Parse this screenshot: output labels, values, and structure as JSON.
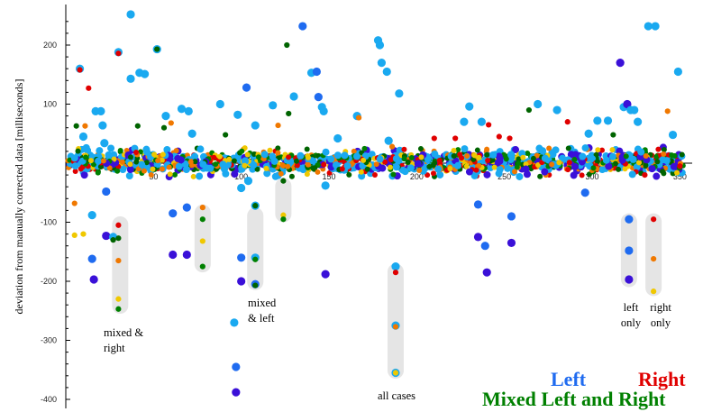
{
  "chart_data": {
    "type": "scatter",
    "ylabel": "deviation from manually corrected data [milliseconds]",
    "xlim": [
      0,
      360
    ],
    "ylim": [
      -405,
      270
    ],
    "x_ticks": [
      50,
      100,
      150,
      200,
      250,
      300,
      350
    ],
    "y_ticks": [
      200,
      100,
      -100,
      -200,
      -300,
      -400
    ],
    "colors": {
      "left": "#1f6bf0",
      "right": "#e00000",
      "mixed": "#008000",
      "light_blue": "#1aa9f0",
      "dark_blue": "#3a10d8",
      "orange": "#f07800",
      "yellow": "#f0c800",
      "dark_green": "#006400",
      "band": "#e0e0e0"
    },
    "legend": {
      "left": "Left",
      "right": "Right",
      "mixed": "Mixed Left and Right"
    },
    "annotations": [
      {
        "id": "mixed-right",
        "lines": [
          "mixed &",
          "right"
        ],
        "color": "#000000"
      },
      {
        "id": "mixed-left",
        "lines": [
          "mixed",
          "& left"
        ],
        "color": "#000000"
      },
      {
        "id": "all-cases",
        "lines": [
          "all cases"
        ],
        "color": "#000000"
      },
      {
        "id": "left-only",
        "lines": [
          "left",
          "only"
        ],
        "color": "#1f6bf0"
      },
      {
        "id": "right-only",
        "lines": [
          "right",
          "only"
        ],
        "color": "#e00000"
      }
    ],
    "highlight_bands": [
      {
        "x": 31,
        "y_from": -90,
        "y_to": -255
      },
      {
        "x": 78,
        "y_from": -70,
        "y_to": -185
      },
      {
        "x": 108,
        "y_from": -75,
        "y_to": -215
      },
      {
        "x": 124,
        "y_from": -25,
        "y_to": -100
      },
      {
        "x": 188,
        "y_from": -170,
        "y_to": -365
      },
      {
        "x": 321,
        "y_from": -85,
        "y_to": -210
      },
      {
        "x": 335,
        "y_from": -85,
        "y_to": -225
      }
    ],
    "outliers": [
      {
        "x": 8,
        "y": 160,
        "c": "light_blue",
        "big": true
      },
      {
        "x": 8,
        "y": 158,
        "c": "right",
        "big": false
      },
      {
        "x": 13,
        "y": 127,
        "c": "right",
        "big": false
      },
      {
        "x": 6,
        "y": 63,
        "c": "dark_green",
        "big": false
      },
      {
        "x": 10,
        "y": 45,
        "c": "light_blue",
        "big": true
      },
      {
        "x": 11,
        "y": 63,
        "c": "orange",
        "big": false
      },
      {
        "x": 17,
        "y": 88,
        "c": "light_blue",
        "big": true
      },
      {
        "x": 20,
        "y": 88,
        "c": "light_blue",
        "big": true
      },
      {
        "x": 21,
        "y": 64,
        "c": "light_blue",
        "big": true
      },
      {
        "x": 22,
        "y": 34,
        "c": "light_blue",
        "big": true
      },
      {
        "x": 30,
        "y": 188,
        "c": "light_blue",
        "big": true
      },
      {
        "x": 30,
        "y": 186,
        "c": "right",
        "big": false
      },
      {
        "x": 37,
        "y": 252,
        "c": "light_blue",
        "big": true
      },
      {
        "x": 37,
        "y": 143,
        "c": "light_blue",
        "big": true
      },
      {
        "x": 42,
        "y": 153,
        "c": "light_blue",
        "big": true
      },
      {
        "x": 45,
        "y": 151,
        "c": "light_blue",
        "big": true
      },
      {
        "x": 41,
        "y": 63,
        "c": "dark_green",
        "big": false
      },
      {
        "x": 52,
        "y": 193,
        "c": "light_blue",
        "big": true
      },
      {
        "x": 52,
        "y": 193,
        "c": "dark_green",
        "big": false
      },
      {
        "x": 57,
        "y": 80,
        "c": "light_blue",
        "big": true
      },
      {
        "x": 60,
        "y": 68,
        "c": "orange",
        "big": false
      },
      {
        "x": 56,
        "y": 60,
        "c": "dark_green",
        "big": false
      },
      {
        "x": 66,
        "y": 92,
        "c": "light_blue",
        "big": true
      },
      {
        "x": 70,
        "y": 88,
        "c": "light_blue",
        "big": true
      },
      {
        "x": 72,
        "y": 50,
        "c": "light_blue",
        "big": true
      },
      {
        "x": 88,
        "y": 100,
        "c": "light_blue",
        "big": true
      },
      {
        "x": 91,
        "y": 48,
        "c": "dark_green",
        "big": false
      },
      {
        "x": 98,
        "y": 82,
        "c": "light_blue",
        "big": true
      },
      {
        "x": 103,
        "y": 128,
        "c": "left",
        "big": true
      },
      {
        "x": 108,
        "y": 64,
        "c": "light_blue",
        "big": true
      },
      {
        "x": 118,
        "y": 98,
        "c": "light_blue",
        "big": true
      },
      {
        "x": 121,
        "y": 64,
        "c": "orange",
        "big": false
      },
      {
        "x": 126,
        "y": 200,
        "c": "dark_green",
        "big": false
      },
      {
        "x": 127,
        "y": 84,
        "c": "dark_green",
        "big": false
      },
      {
        "x": 130,
        "y": 113,
        "c": "light_blue",
        "big": true
      },
      {
        "x": 135,
        "y": 232,
        "c": "left",
        "big": true
      },
      {
        "x": 140,
        "y": 153,
        "c": "light_blue",
        "big": true
      },
      {
        "x": 143,
        "y": 155,
        "c": "left",
        "big": true
      },
      {
        "x": 144,
        "y": 112,
        "c": "left",
        "big": true
      },
      {
        "x": 146,
        "y": 95,
        "c": "light_blue",
        "big": true
      },
      {
        "x": 147,
        "y": 88,
        "c": "light_blue",
        "big": true
      },
      {
        "x": 155,
        "y": 42,
        "c": "light_blue",
        "big": true
      },
      {
        "x": 166,
        "y": 80,
        "c": "light_blue",
        "big": true
      },
      {
        "x": 167,
        "y": 77,
        "c": "orange",
        "big": false
      },
      {
        "x": 178,
        "y": 208,
        "c": "light_blue",
        "big": true
      },
      {
        "x": 179,
        "y": 200,
        "c": "light_blue",
        "big": true
      },
      {
        "x": 180,
        "y": 170,
        "c": "light_blue",
        "big": true
      },
      {
        "x": 183,
        "y": 155,
        "c": "light_blue",
        "big": true
      },
      {
        "x": 184,
        "y": 38,
        "c": "light_blue",
        "big": true
      },
      {
        "x": 186,
        "y": 28,
        "c": "orange",
        "big": false
      },
      {
        "x": 190,
        "y": 118,
        "c": "light_blue",
        "big": true
      },
      {
        "x": 210,
        "y": 42,
        "c": "right",
        "big": false
      },
      {
        "x": 222,
        "y": 42,
        "c": "right",
        "big": false
      },
      {
        "x": 227,
        "y": 70,
        "c": "light_blue",
        "big": true
      },
      {
        "x": 230,
        "y": 96,
        "c": "light_blue",
        "big": true
      },
      {
        "x": 237,
        "y": 70,
        "c": "light_blue",
        "big": true
      },
      {
        "x": 241,
        "y": 65,
        "c": "right",
        "big": false
      },
      {
        "x": 247,
        "y": 45,
        "c": "right",
        "big": false
      },
      {
        "x": 253,
        "y": 42,
        "c": "right",
        "big": false
      },
      {
        "x": 264,
        "y": 90,
        "c": "dark_green",
        "big": false
      },
      {
        "x": 269,
        "y": 100,
        "c": "light_blue",
        "big": true
      },
      {
        "x": 280,
        "y": 90,
        "c": "light_blue",
        "big": true
      },
      {
        "x": 286,
        "y": 70,
        "c": "right",
        "big": false
      },
      {
        "x": 298,
        "y": 50,
        "c": "light_blue",
        "big": true
      },
      {
        "x": 303,
        "y": 72,
        "c": "light_blue",
        "big": true
      },
      {
        "x": 309,
        "y": 72,
        "c": "light_blue",
        "big": true
      },
      {
        "x": 312,
        "y": 48,
        "c": "dark_green",
        "big": false
      },
      {
        "x": 316,
        "y": 170,
        "c": "dark_blue",
        "big": true
      },
      {
        "x": 318,
        "y": 95,
        "c": "light_blue",
        "big": true
      },
      {
        "x": 320,
        "y": 100,
        "c": "dark_blue",
        "big": true
      },
      {
        "x": 322,
        "y": 90,
        "c": "light_blue",
        "big": true
      },
      {
        "x": 324,
        "y": 90,
        "c": "light_blue",
        "big": true
      },
      {
        "x": 326,
        "y": 70,
        "c": "light_blue",
        "big": true
      },
      {
        "x": 332,
        "y": 232,
        "c": "light_blue",
        "big": true
      },
      {
        "x": 336,
        "y": 232,
        "c": "light_blue",
        "big": true
      },
      {
        "x": 343,
        "y": 88,
        "c": "orange",
        "big": false
      },
      {
        "x": 349,
        "y": 155,
        "c": "light_blue",
        "big": true
      },
      {
        "x": 346,
        "y": 48,
        "c": "light_blue",
        "big": true
      },
      {
        "x": 5,
        "y": -68,
        "c": "orange",
        "big": false
      },
      {
        "x": 5,
        "y": -122,
        "c": "yellow",
        "big": false
      },
      {
        "x": 10,
        "y": -120,
        "c": "yellow",
        "big": false
      },
      {
        "x": 15,
        "y": -88,
        "c": "light_blue",
        "big": true
      },
      {
        "x": 15,
        "y": -162,
        "c": "left",
        "big": true
      },
      {
        "x": 16,
        "y": -197,
        "c": "dark_blue",
        "big": true
      },
      {
        "x": 23,
        "y": -48,
        "c": "left",
        "big": true
      },
      {
        "x": 23,
        "y": -123,
        "c": "dark_blue",
        "big": true
      },
      {
        "x": 27,
        "y": -125,
        "c": "light_blue",
        "big": true
      },
      {
        "x": 27,
        "y": -130,
        "c": "dark_green",
        "big": false
      },
      {
        "x": 30,
        "y": -105,
        "c": "right",
        "big": false
      },
      {
        "x": 30,
        "y": -165,
        "c": "orange",
        "big": false
      },
      {
        "x": 30,
        "y": -230,
        "c": "yellow",
        "big": false
      },
      {
        "x": 30,
        "y": -247,
        "c": "mixed",
        "big": false
      },
      {
        "x": 30,
        "y": -127,
        "c": "dark_green",
        "big": false
      },
      {
        "x": 61,
        "y": -85,
        "c": "left",
        "big": true
      },
      {
        "x": 61,
        "y": -155,
        "c": "dark_blue",
        "big": true
      },
      {
        "x": 69,
        "y": -75,
        "c": "left",
        "big": true
      },
      {
        "x": 69,
        "y": -155,
        "c": "dark_blue",
        "big": true
      },
      {
        "x": 78,
        "y": -75,
        "c": "orange",
        "big": false
      },
      {
        "x": 78,
        "y": -95,
        "c": "mixed",
        "big": false
      },
      {
        "x": 78,
        "y": -132,
        "c": "yellow",
        "big": false
      },
      {
        "x": 78,
        "y": -175,
        "c": "mixed",
        "big": false
      },
      {
        "x": 96,
        "y": -270,
        "c": "light_blue",
        "big": true
      },
      {
        "x": 97,
        "y": -345,
        "c": "left",
        "big": true
      },
      {
        "x": 97,
        "y": -388,
        "c": "dark_blue",
        "big": true
      },
      {
        "x": 100,
        "y": -42,
        "c": "light_blue",
        "big": true
      },
      {
        "x": 100,
        "y": -160,
        "c": "left",
        "big": true
      },
      {
        "x": 100,
        "y": -200,
        "c": "dark_blue",
        "big": true
      },
      {
        "x": 104,
        "y": -30,
        "c": "light_blue",
        "big": true
      },
      {
        "x": 108,
        "y": -72,
        "c": "light_blue",
        "big": true
      },
      {
        "x": 108,
        "y": -72,
        "c": "dark_green",
        "big": false
      },
      {
        "x": 108,
        "y": -160,
        "c": "light_blue",
        "big": true
      },
      {
        "x": 108,
        "y": -163,
        "c": "mixed",
        "big": false
      },
      {
        "x": 108,
        "y": -205,
        "c": "left",
        "big": true
      },
      {
        "x": 108,
        "y": -207,
        "c": "dark_green",
        "big": false
      },
      {
        "x": 124,
        "y": -30,
        "c": "dark_green",
        "big": false
      },
      {
        "x": 124,
        "y": -88,
        "c": "yellow",
        "big": false
      },
      {
        "x": 124,
        "y": -95,
        "c": "mixed",
        "big": false
      },
      {
        "x": 148,
        "y": -38,
        "c": "light_blue",
        "big": true
      },
      {
        "x": 148,
        "y": -188,
        "c": "dark_blue",
        "big": true
      },
      {
        "x": 188,
        "y": -175,
        "c": "light_blue",
        "big": true
      },
      {
        "x": 188,
        "y": -185,
        "c": "right",
        "big": false
      },
      {
        "x": 188,
        "y": -275,
        "c": "light_blue",
        "big": true
      },
      {
        "x": 188,
        "y": -277,
        "c": "orange",
        "big": false
      },
      {
        "x": 188,
        "y": -355,
        "c": "light_blue",
        "big": true
      },
      {
        "x": 188,
        "y": -355,
        "c": "yellow",
        "big": false
      },
      {
        "x": 235,
        "y": -70,
        "c": "left",
        "big": true
      },
      {
        "x": 235,
        "y": -125,
        "c": "dark_blue",
        "big": true
      },
      {
        "x": 239,
        "y": -140,
        "c": "left",
        "big": true
      },
      {
        "x": 240,
        "y": -185,
        "c": "dark_blue",
        "big": true
      },
      {
        "x": 254,
        "y": -90,
        "c": "left",
        "big": true
      },
      {
        "x": 254,
        "y": -135,
        "c": "dark_blue",
        "big": true
      },
      {
        "x": 296,
        "y": -50,
        "c": "left",
        "big": true
      },
      {
        "x": 321,
        "y": -95,
        "c": "left",
        "big": true
      },
      {
        "x": 321,
        "y": -148,
        "c": "left",
        "big": true
      },
      {
        "x": 321,
        "y": -197,
        "c": "dark_blue",
        "big": true
      },
      {
        "x": 335,
        "y": -95,
        "c": "right",
        "big": false
      },
      {
        "x": 335,
        "y": -162,
        "c": "orange",
        "big": false
      },
      {
        "x": 335,
        "y": -217,
        "c": "yellow",
        "big": false
      },
      {
        "x": 330,
        "y": -20,
        "c": "right",
        "big": false
      },
      {
        "x": 350,
        "y": -5,
        "c": "right",
        "big": false
      }
    ]
  }
}
